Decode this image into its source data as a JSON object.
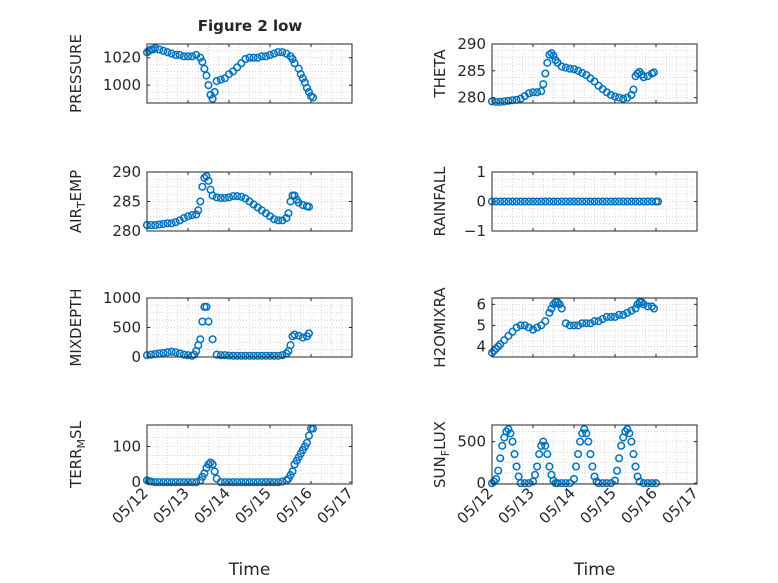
{
  "figure_title": "Figure 2 low",
  "marker_color": "#0072bd",
  "time_axis": {
    "label": "Time",
    "ticks": [
      "05/12",
      "05/13",
      "05/14",
      "05/15",
      "05/16",
      "05/17"
    ],
    "range_days": [
      12,
      17
    ]
  },
  "chart_data": [
    {
      "type": "scatter",
      "ylabel": "PRESSURE",
      "ylim": [
        987,
        1030
      ],
      "yticks": [
        1000,
        1020
      ],
      "grid": true,
      "x": [
        12,
        12.05,
        12.1,
        12.15,
        12.2,
        12.3,
        12.4,
        12.5,
        12.6,
        12.7,
        12.8,
        12.9,
        13.0,
        13.1,
        13.2,
        13.3,
        13.35,
        13.4,
        13.45,
        13.5,
        13.55,
        13.6,
        13.65,
        13.7,
        13.8,
        13.9,
        14.0,
        14.1,
        14.2,
        14.3,
        14.4,
        14.5,
        14.6,
        14.7,
        14.8,
        14.9,
        15.0,
        15.1,
        15.2,
        15.3,
        15.4,
        15.5,
        15.55,
        15.6,
        15.7,
        15.75,
        15.8,
        15.85,
        15.9,
        15.95,
        16.0,
        16.05
      ],
      "y": [
        1024,
        1025,
        1026,
        1026,
        1027,
        1026,
        1025,
        1024,
        1023,
        1022,
        1022,
        1021,
        1021,
        1021,
        1022,
        1020,
        1017,
        1012,
        1007,
        1000,
        993,
        990,
        995,
        1003,
        1004,
        1005,
        1008,
        1010,
        1013,
        1016,
        1019,
        1020,
        1020,
        1020,
        1021,
        1021,
        1022,
        1023,
        1024,
        1024,
        1023,
        1021,
        1019,
        1016,
        1012,
        1008,
        1005,
        1002,
        998,
        995,
        992,
        991
      ]
    },
    {
      "type": "scatter",
      "ylabel": "THETA",
      "ylim": [
        279,
        290
      ],
      "yticks": [
        280,
        285,
        290
      ],
      "grid": true,
      "x": [
        12,
        12.1,
        12.2,
        12.3,
        12.4,
        12.5,
        12.6,
        12.7,
        12.8,
        12.9,
        13.0,
        13.1,
        13.2,
        13.25,
        13.3,
        13.35,
        13.4,
        13.45,
        13.5,
        13.55,
        13.6,
        13.7,
        13.8,
        13.9,
        14.0,
        14.1,
        14.2,
        14.3,
        14.4,
        14.5,
        14.6,
        14.7,
        14.8,
        14.9,
        15.0,
        15.1,
        15.2,
        15.3,
        15.4,
        15.45,
        15.5,
        15.55,
        15.6,
        15.65,
        15.7,
        15.8,
        15.9,
        15.95
      ],
      "y": [
        279.3,
        279.2,
        279.2,
        279.3,
        279.4,
        279.5,
        279.6,
        279.8,
        280.3,
        280.8,
        281.0,
        281.0,
        281.2,
        282.5,
        284.5,
        286.5,
        288.0,
        288.3,
        287.8,
        287.0,
        286.5,
        285.8,
        285.6,
        285.4,
        285.3,
        285.0,
        284.6,
        284.2,
        283.6,
        283.0,
        282.2,
        281.6,
        281.0,
        280.5,
        280.2,
        280.0,
        279.8,
        280.0,
        280.5,
        281.5,
        284.0,
        284.5,
        284.8,
        284.3,
        283.8,
        284.0,
        284.5,
        284.7
      ]
    },
    {
      "type": "scatter",
      "ylabel": "AIR_TEMP",
      "ylim": [
        280,
        290
      ],
      "yticks": [
        280,
        285,
        290
      ],
      "grid": true,
      "x": [
        12,
        12.1,
        12.2,
        12.3,
        12.4,
        12.5,
        12.6,
        12.7,
        12.8,
        12.9,
        13.0,
        13.1,
        13.2,
        13.25,
        13.3,
        13.35,
        13.4,
        13.45,
        13.5,
        13.55,
        13.6,
        13.7,
        13.8,
        13.9,
        14.0,
        14.1,
        14.2,
        14.3,
        14.4,
        14.5,
        14.6,
        14.7,
        14.8,
        14.9,
        15.0,
        15.1,
        15.2,
        15.3,
        15.4,
        15.45,
        15.5,
        15.55,
        15.6,
        15.65,
        15.7,
        15.8,
        15.9,
        15.95
      ],
      "y": [
        281.0,
        281.0,
        281.0,
        281.1,
        281.2,
        281.3,
        281.3,
        281.5,
        281.8,
        282.2,
        282.5,
        282.7,
        282.8,
        283.5,
        285.0,
        287.5,
        289.0,
        289.3,
        288.5,
        287.0,
        286.0,
        285.7,
        285.6,
        285.6,
        285.7,
        285.9,
        285.9,
        285.8,
        285.5,
        285.0,
        284.5,
        284.0,
        283.5,
        283.0,
        282.5,
        282.0,
        281.8,
        281.8,
        282.2,
        283.0,
        285.0,
        286.0,
        286.0,
        285.3,
        284.8,
        284.4,
        284.2,
        284.1
      ]
    },
    {
      "type": "scatter",
      "ylabel": "RAINFALL",
      "ylim": [
        -1,
        1
      ],
      "yticks": [
        -1,
        0,
        1
      ],
      "grid": true,
      "x": [
        12,
        12.1,
        12.2,
        12.3,
        12.4,
        12.5,
        12.6,
        12.7,
        12.8,
        12.9,
        13.0,
        13.1,
        13.2,
        13.3,
        13.4,
        13.5,
        13.6,
        13.7,
        13.8,
        13.9,
        14.0,
        14.1,
        14.2,
        14.3,
        14.4,
        14.5,
        14.6,
        14.7,
        14.8,
        14.9,
        15.0,
        15.1,
        15.2,
        15.3,
        15.4,
        15.5,
        15.6,
        15.7,
        15.8,
        15.9,
        16.0,
        16.05
      ],
      "y": [
        0,
        0,
        0,
        0,
        0,
        0,
        0,
        0,
        0,
        0,
        0,
        0,
        0,
        0,
        0,
        0,
        0,
        0,
        0,
        0,
        0,
        0,
        0,
        0,
        0,
        0,
        0,
        0,
        0,
        0,
        0,
        0,
        0,
        0,
        0,
        0,
        0,
        0,
        0,
        0,
        0,
        0
      ]
    },
    {
      "type": "scatter",
      "ylabel": "MIXDEPTH",
      "ylim": [
        0,
        1000
      ],
      "yticks": [
        0,
        500,
        1000
      ],
      "grid": true,
      "x": [
        12,
        12.1,
        12.2,
        12.3,
        12.4,
        12.5,
        12.6,
        12.7,
        12.8,
        12.9,
        13.0,
        13.1,
        13.15,
        13.2,
        13.25,
        13.3,
        13.35,
        13.4,
        13.45,
        13.5,
        13.6,
        13.7,
        13.8,
        13.9,
        14.0,
        14.1,
        14.2,
        14.3,
        14.4,
        14.5,
        14.6,
        14.7,
        14.8,
        14.9,
        15.0,
        15.1,
        15.2,
        15.3,
        15.4,
        15.45,
        15.5,
        15.55,
        15.6,
        15.7,
        15.8,
        15.9,
        15.95
      ],
      "y": [
        30,
        40,
        50,
        60,
        70,
        80,
        90,
        80,
        60,
        40,
        30,
        20,
        40,
        100,
        200,
        300,
        600,
        850,
        850,
        600,
        300,
        40,
        30,
        30,
        25,
        20,
        20,
        20,
        20,
        20,
        20,
        20,
        20,
        20,
        20,
        20,
        20,
        30,
        60,
        100,
        200,
        350,
        380,
        360,
        330,
        350,
        400
      ]
    },
    {
      "type": "scatter",
      "ylabel": "H2OMIXRA",
      "ylim": [
        3.5,
        6.3
      ],
      "yticks": [
        4,
        5,
        6
      ],
      "grid": true,
      "x": [
        12,
        12.05,
        12.1,
        12.15,
        12.2,
        12.3,
        12.4,
        12.5,
        12.6,
        12.7,
        12.8,
        12.9,
        13.0,
        13.1,
        13.2,
        13.3,
        13.4,
        13.45,
        13.5,
        13.55,
        13.6,
        13.65,
        13.7,
        13.8,
        13.9,
        14.0,
        14.1,
        14.2,
        14.3,
        14.4,
        14.5,
        14.6,
        14.7,
        14.8,
        14.9,
        15.0,
        15.1,
        15.2,
        15.3,
        15.4,
        15.5,
        15.55,
        15.6,
        15.65,
        15.7,
        15.8,
        15.9,
        15.95
      ],
      "y": [
        3.7,
        3.8,
        3.9,
        4.0,
        4.1,
        4.3,
        4.5,
        4.7,
        4.9,
        5.0,
        5.0,
        4.9,
        4.8,
        4.9,
        5.0,
        5.2,
        5.6,
        5.8,
        6.0,
        6.1,
        6.1,
        6.0,
        5.8,
        5.1,
        5.0,
        5.0,
        5.0,
        5.1,
        5.1,
        5.1,
        5.2,
        5.2,
        5.3,
        5.4,
        5.4,
        5.4,
        5.5,
        5.5,
        5.6,
        5.7,
        5.8,
        6.0,
        6.1,
        6.1,
        6.0,
        5.9,
        5.9,
        5.8
      ]
    },
    {
      "type": "scatter",
      "ylabel": "TERR_MSL",
      "ylim": [
        -5,
        160
      ],
      "yticks": [
        0,
        100
      ],
      "grid": true,
      "x": [
        12,
        12.05,
        12.1,
        12.2,
        12.3,
        12.4,
        12.5,
        12.6,
        12.7,
        12.8,
        12.9,
        13.0,
        13.1,
        13.2,
        13.3,
        13.35,
        13.4,
        13.45,
        13.5,
        13.55,
        13.6,
        13.65,
        13.7,
        13.8,
        13.9,
        14.0,
        14.1,
        14.2,
        14.3,
        14.4,
        14.5,
        14.6,
        14.7,
        14.8,
        14.9,
        15.0,
        15.1,
        15.2,
        15.3,
        15.4,
        15.45,
        15.5,
        15.55,
        15.6,
        15.65,
        15.7,
        15.75,
        15.8,
        15.85,
        15.9,
        15.95,
        16.0,
        16.05
      ],
      "y": [
        5,
        3,
        2,
        0,
        0,
        0,
        0,
        0,
        0,
        0,
        0,
        0,
        0,
        0,
        5,
        15,
        25,
        40,
        50,
        55,
        50,
        30,
        10,
        0,
        0,
        0,
        0,
        0,
        0,
        0,
        0,
        0,
        0,
        0,
        0,
        0,
        0,
        0,
        2,
        5,
        10,
        20,
        30,
        50,
        60,
        70,
        80,
        90,
        100,
        110,
        130,
        150,
        150
      ]
    },
    {
      "type": "scatter",
      "ylabel": "SUN_FLUX",
      "ylim": [
        -10,
        700
      ],
      "yticks": [
        0,
        500
      ],
      "grid": true,
      "x": [
        12,
        12.05,
        12.1,
        12.15,
        12.2,
        12.25,
        12.3,
        12.35,
        12.4,
        12.45,
        12.5,
        12.55,
        12.6,
        12.65,
        12.7,
        12.8,
        12.9,
        13.0,
        13.05,
        13.1,
        13.15,
        13.2,
        13.25,
        13.3,
        13.35,
        13.4,
        13.45,
        13.5,
        13.55,
        13.6,
        13.7,
        13.8,
        13.9,
        14.0,
        14.05,
        14.1,
        14.15,
        14.2,
        14.25,
        14.3,
        14.35,
        14.4,
        14.45,
        14.5,
        14.55,
        14.6,
        14.7,
        14.8,
        14.9,
        15.0,
        15.05,
        15.1,
        15.15,
        15.2,
        15.25,
        15.3,
        15.35,
        15.4,
        15.45,
        15.5,
        15.55,
        15.6,
        15.7,
        15.8,
        15.9,
        16.0
      ],
      "y": [
        0,
        20,
        50,
        150,
        300,
        450,
        550,
        620,
        650,
        600,
        500,
        350,
        200,
        80,
        0,
        0,
        0,
        20,
        100,
        200,
        350,
        450,
        500,
        450,
        350,
        200,
        100,
        30,
        0,
        0,
        0,
        0,
        0,
        50,
        200,
        350,
        500,
        600,
        650,
        600,
        500,
        350,
        200,
        80,
        20,
        0,
        0,
        0,
        0,
        30,
        150,
        300,
        450,
        550,
        620,
        650,
        600,
        500,
        350,
        200,
        80,
        20,
        0,
        0,
        0,
        0
      ]
    }
  ]
}
